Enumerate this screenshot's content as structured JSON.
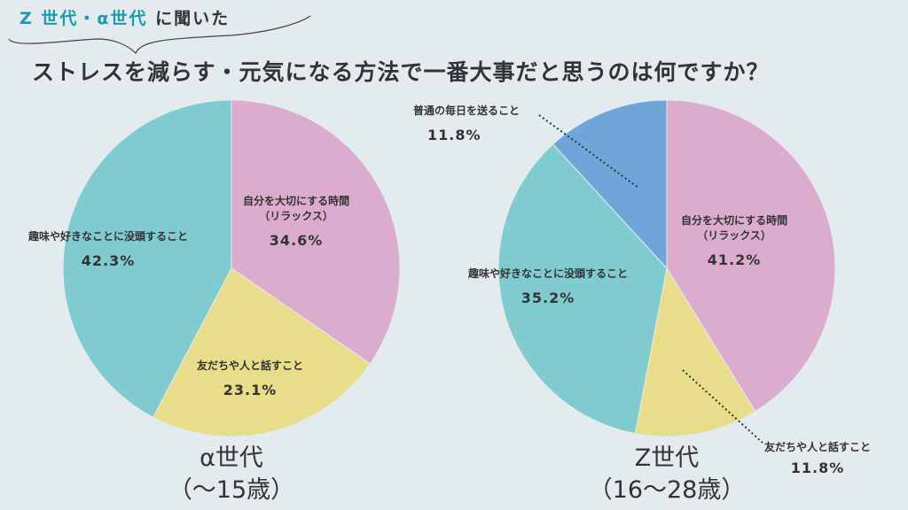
{
  "header": {
    "subtitle_highlight": "Z 世代・α世代",
    "subtitle_rest": "に聞いた",
    "title": "ストレスを減らす・元気になる方法で一番大事だと思うのは何ですか？"
  },
  "colors": {
    "background": "#e3ebee",
    "accent": "#1a9bb0",
    "relax": "#dcaccf",
    "talk": "#e8dd8a",
    "hobby": "#80cbd0",
    "daily": "#6fa5d8"
  },
  "chart_data": [
    {
      "type": "pie",
      "title": "α世代",
      "subtitle": "（～15歳）",
      "start": "top",
      "direction": "clockwise",
      "slices": [
        {
          "key": "relax",
          "label": "自分を大切にする時間",
          "label2": "（リラックス）",
          "value": 34.6,
          "display": "34.6%"
        },
        {
          "key": "talk",
          "label": "友だちや人と話すこと",
          "value": 23.1,
          "display": "23.1%"
        },
        {
          "key": "hobby",
          "label": "趣味や好きなことに没頭すること",
          "value": 42.3,
          "display": "42.3%"
        }
      ]
    },
    {
      "type": "pie",
      "title": "Z世代",
      "subtitle": "（16～28歳）",
      "start": "top",
      "direction": "clockwise",
      "slices": [
        {
          "key": "relax",
          "label": "自分を大切にする時間",
          "label2": "（リラックス）",
          "value": 41.2,
          "display": "41.2%"
        },
        {
          "key": "talk",
          "label": "友だちや人と話すこと",
          "value": 11.8,
          "display": "11.8%"
        },
        {
          "key": "hobby",
          "label": "趣味や好きなことに没頭すること",
          "value": 35.2,
          "display": "35.2%"
        },
        {
          "key": "daily",
          "label": "普通の毎日を送ること",
          "value": 11.8,
          "display": "11.8%"
        }
      ]
    }
  ]
}
